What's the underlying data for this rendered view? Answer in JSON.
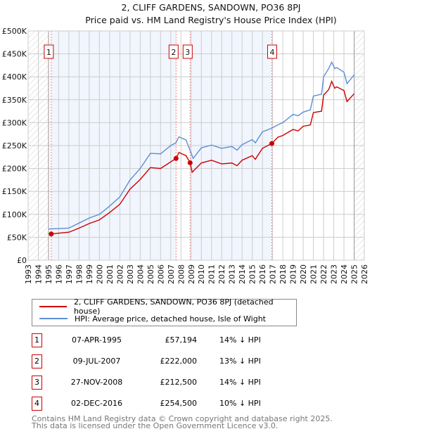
{
  "chart_data": {
    "type": "line",
    "title": "2, CLIFF GARDENS, SANDOWN, PO36 8PJ",
    "subtitle": "Price paid vs. HM Land Registry's House Price Index (HPI)",
    "xlim": [
      1993,
      2026
    ],
    "ylim": [
      0,
      500000
    ],
    "x_ticks": [
      "1993",
      "1994",
      "1995",
      "1996",
      "1997",
      "1998",
      "1999",
      "2000",
      "2001",
      "2002",
      "2003",
      "2004",
      "2005",
      "2006",
      "2007",
      "2008",
      "2009",
      "2010",
      "2011",
      "2012",
      "2013",
      "2014",
      "2015",
      "2016",
      "2017",
      "2018",
      "2019",
      "2020",
      "2021",
      "2022",
      "2023",
      "2024",
      "2025",
      "2026"
    ],
    "y_ticks": [
      {
        "v": 0,
        "l": "£0"
      },
      {
        "v": 50000,
        "l": "£50K"
      },
      {
        "v": 100000,
        "l": "£100K"
      },
      {
        "v": 150000,
        "l": "£150K"
      },
      {
        "v": 200000,
        "l": "£200K"
      },
      {
        "v": 250000,
        "l": "£250K"
      },
      {
        "v": 300000,
        "l": "£300K"
      },
      {
        "v": 350000,
        "l": "£350K"
      },
      {
        "v": 400000,
        "l": "£400K"
      },
      {
        "v": 450000,
        "l": "£450K"
      },
      {
        "v": 500000,
        "l": "£500K"
      }
    ],
    "grid": true,
    "hatched_ranges": [
      [
        1993,
        1995
      ],
      [
        2025,
        2026
      ]
    ],
    "shaded_ranges": [
      [
        1995.27,
        2007.52
      ],
      [
        2008.9,
        2016.92
      ]
    ],
    "series": [
      {
        "name": "2, CLIFF GARDENS, SANDOWN, PO36 8PJ (detached house)",
        "color": "#cc0000",
        "points": [
          [
            1995.27,
            57194
          ],
          [
            1996,
            59000
          ],
          [
            1997,
            61000
          ],
          [
            1998,
            70000
          ],
          [
            1999,
            80000
          ],
          [
            2000,
            88000
          ],
          [
            2001,
            104000
          ],
          [
            2002,
            122000
          ],
          [
            2003,
            155000
          ],
          [
            2004,
            176000
          ],
          [
            2005,
            202000
          ],
          [
            2006,
            200000
          ],
          [
            2007.52,
            222000
          ],
          [
            2007.8,
            235000
          ],
          [
            2008.5,
            228000
          ],
          [
            2008.9,
            212500
          ],
          [
            2009.1,
            192000
          ],
          [
            2010,
            212000
          ],
          [
            2011,
            218000
          ],
          [
            2012,
            210000
          ],
          [
            2013,
            212000
          ],
          [
            2013.5,
            206000
          ],
          [
            2014,
            218000
          ],
          [
            2015,
            228000
          ],
          [
            2015.3,
            220000
          ],
          [
            2016,
            244000
          ],
          [
            2016.92,
            254500
          ],
          [
            2017.5,
            268000
          ],
          [
            2018,
            272000
          ],
          [
            2019,
            285000
          ],
          [
            2019.5,
            282000
          ],
          [
            2020,
            292000
          ],
          [
            2020.7,
            295000
          ],
          [
            2021,
            322000
          ],
          [
            2021.8,
            325000
          ],
          [
            2022,
            360000
          ],
          [
            2022.5,
            372000
          ],
          [
            2022.8,
            390000
          ],
          [
            2023.1,
            375000
          ],
          [
            2023.3,
            378000
          ],
          [
            2024,
            370000
          ],
          [
            2024.3,
            346000
          ],
          [
            2025,
            363000
          ]
        ]
      },
      {
        "name": "HPI: Average price, detached house, Isle of Wight",
        "color": "#5b8fd4",
        "points": [
          [
            1995,
            68000
          ],
          [
            1996,
            69000
          ],
          [
            1997,
            70000
          ],
          [
            1998,
            81000
          ],
          [
            1999,
            92000
          ],
          [
            2000,
            100000
          ],
          [
            2001,
            118000
          ],
          [
            2002,
            138000
          ],
          [
            2003,
            175000
          ],
          [
            2004,
            200000
          ],
          [
            2005,
            233000
          ],
          [
            2006,
            232000
          ],
          [
            2007,
            250000
          ],
          [
            2007.5,
            256000
          ],
          [
            2007.8,
            269000
          ],
          [
            2008.5,
            262000
          ],
          [
            2009.2,
            222000
          ],
          [
            2010,
            245000
          ],
          [
            2011,
            251000
          ],
          [
            2012,
            244000
          ],
          [
            2013,
            248000
          ],
          [
            2013.5,
            240000
          ],
          [
            2014,
            252000
          ],
          [
            2015,
            263000
          ],
          [
            2015.3,
            256000
          ],
          [
            2016,
            280000
          ],
          [
            2016.92,
            288000
          ],
          [
            2017.5,
            295000
          ],
          [
            2018,
            300000
          ],
          [
            2019,
            318000
          ],
          [
            2019.5,
            315000
          ],
          [
            2020,
            323000
          ],
          [
            2020.7,
            328000
          ],
          [
            2021,
            358000
          ],
          [
            2021.8,
            362000
          ],
          [
            2022,
            400000
          ],
          [
            2022.5,
            418000
          ],
          [
            2022.8,
            432000
          ],
          [
            2023.1,
            418000
          ],
          [
            2023.3,
            420000
          ],
          [
            2024,
            410000
          ],
          [
            2024.3,
            385000
          ],
          [
            2025,
            404000
          ]
        ]
      }
    ],
    "sales": [
      {
        "n": "1",
        "x": 1995.27,
        "y": 57194,
        "date": "07-APR-1995",
        "price": "£57,194",
        "hpi": "14% ↓ HPI"
      },
      {
        "n": "2",
        "x": 2007.52,
        "y": 222000,
        "date": "09-JUL-2007",
        "price": "£222,000",
        "hpi": "13% ↓ HPI"
      },
      {
        "n": "3",
        "x": 2008.9,
        "y": 212500,
        "date": "27-NOV-2008",
        "price": "£212,500",
        "hpi": "14% ↓ HPI"
      },
      {
        "n": "4",
        "x": 2016.92,
        "y": 254500,
        "date": "02-DEC-2016",
        "price": "£254,500",
        "hpi": "10% ↓ HPI"
      }
    ]
  },
  "footer": {
    "line1": "Contains HM Land Registry data © Crown copyright and database right 2025.",
    "line2": "This data is licensed under the Open Government Licence v3.0."
  }
}
